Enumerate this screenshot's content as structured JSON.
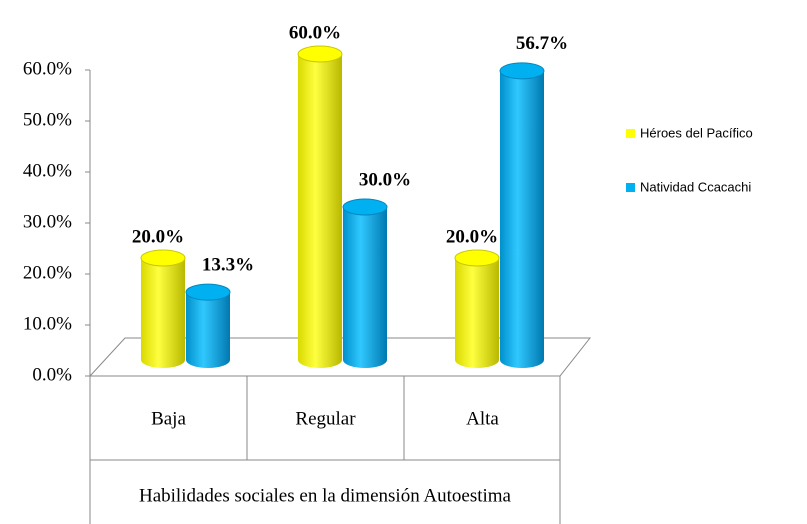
{
  "chart_data": {
    "type": "bar3d",
    "x_label": "Habilidades sociales en la dimensión Autoestima",
    "categories": [
      "Baja",
      "Regular",
      "Alta"
    ],
    "series": [
      {
        "name": "Héroes del Pacífico",
        "color": "#ffff00",
        "values": [
          20,
          60,
          20
        ],
        "value_labels": [
          "20.0%",
          "60.0%",
          "20.0%"
        ]
      },
      {
        "name": "Natividad Ccacachi",
        "color": "#00b0f0",
        "values": [
          13.3,
          30,
          56.7
        ],
        "value_labels": [
          "13.3%",
          "30.0%",
          "56.7%"
        ]
      }
    ],
    "ylim": [
      0,
      60
    ],
    "yticks": [
      {
        "value": 0,
        "label": "0.0%"
      },
      {
        "value": 10,
        "label": "10.0%"
      },
      {
        "value": 20,
        "label": "20.0%"
      },
      {
        "value": 30,
        "label": "30.0%"
      },
      {
        "value": 40,
        "label": "40.0%"
      },
      {
        "value": 50,
        "label": "50.0%"
      },
      {
        "value": 60,
        "label": "60.0%"
      }
    ],
    "legend": "right"
  }
}
